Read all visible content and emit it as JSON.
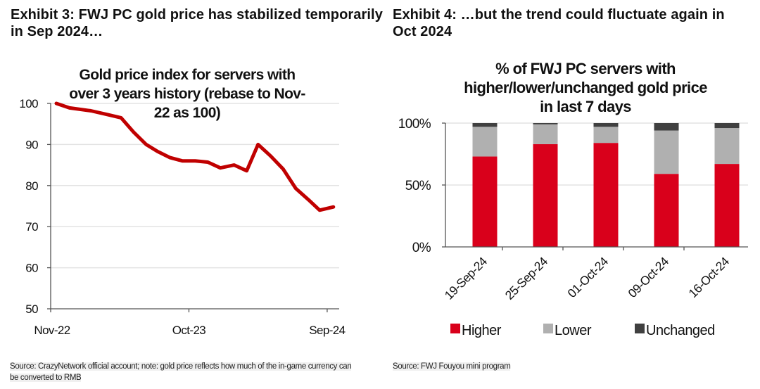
{
  "exhibit3": {
    "title": "Exhibit 3: FWJ PC gold price has stabilized temporarily in Sep 2024…",
    "source": "Source: CrazyNetwork official account; note: gold price reflects how much of the in-game currency can be converted to RMB"
  },
  "exhibit4": {
    "title": "Exhibit 4: …but the trend could fluctuate again in Oct 2024",
    "source": "Source: FWJ Fouyou mini program"
  },
  "colors": {
    "line": "#C00000",
    "higher": "#D9001B",
    "lower": "#B0B0B0",
    "unchanged": "#404040",
    "grid": "#E3E3E3",
    "axis": "#555555"
  },
  "chart_data": [
    {
      "type": "line",
      "title_lines": [
        "Gold price index for servers with",
        "over 3 years history (rebase to Nov-",
        "22 as 100)"
      ],
      "xlabel": "",
      "ylabel": "",
      "x_unit": "months since Nov-22",
      "xlim": [
        0,
        23.3
      ],
      "ylim": [
        50,
        100
      ],
      "yticks": [
        50,
        60,
        70,
        80,
        90,
        100
      ],
      "xticks": [
        {
          "label": "Nov-22",
          "x": 0
        },
        {
          "label": "Oct-23",
          "x": 11
        },
        {
          "label": "Sep-24",
          "x": 22
        }
      ],
      "grid": true,
      "legend": "none",
      "series": [
        {
          "name": "Gold price index",
          "x": [
            0.45,
            1.5,
            3.2,
            4.5,
            5.6,
            6.6,
            7.6,
            8.5,
            9.5,
            10.5,
            11.5,
            12.5,
            13.5,
            14.6,
            15.6,
            16.5,
            17.5,
            18.5,
            19.5,
            20.5,
            21.4,
            22.5
          ],
          "y": [
            100,
            98.9,
            98.2,
            97.3,
            96.5,
            93.0,
            90.0,
            88.3,
            86.8,
            86.0,
            86.0,
            85.7,
            84.3,
            85.0,
            83.6,
            90.0,
            87.2,
            84.0,
            79.3,
            76.6,
            74.0,
            74.8
          ]
        }
      ]
    },
    {
      "type": "bar",
      "stacked": true,
      "title_lines": [
        "% of FWJ PC servers with",
        "higher/lower/unchanged gold price",
        "in last 7 days"
      ],
      "xlabel": "",
      "ylabel": "",
      "ylim": [
        0,
        100
      ],
      "yticks": [
        0,
        50,
        100
      ],
      "ytick_labels": [
        "0%",
        "50%",
        "100%"
      ],
      "grid": true,
      "legend": "bottom",
      "categories": [
        "19-Sep-24",
        "25-Sep-24",
        "01-Oct-24",
        "09-Oct-24",
        "16-Oct-24"
      ],
      "series": [
        {
          "name": "Higher",
          "values": [
            73,
            83,
            84,
            59,
            67
          ]
        },
        {
          "name": "Lower",
          "values": [
            24,
            16,
            13,
            35,
            29
          ]
        },
        {
          "name": "Unchanged",
          "values": [
            3,
            1,
            3,
            6,
            4
          ]
        }
      ]
    }
  ]
}
